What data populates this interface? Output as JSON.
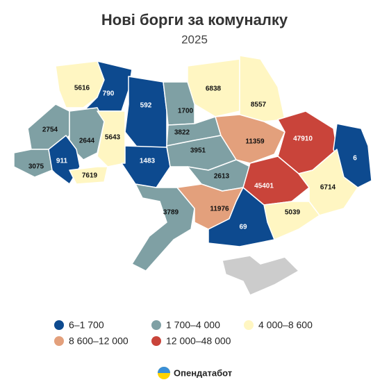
{
  "title": "Нові борги за комуналку",
  "subtitle": "2025",
  "regions": [
    {
      "value": 5616,
      "color": "#fff6c2"
    },
    {
      "value": 790,
      "color": "#0d4a8f"
    },
    {
      "value": 592,
      "color": "#0d4a8f"
    },
    {
      "value": 6838,
      "color": "#fff6c2"
    },
    {
      "value": 8557,
      "color": "#fff6c2"
    },
    {
      "value": 2754,
      "color": "#7fa0a4"
    },
    {
      "value": 2644,
      "color": "#7fa0a4"
    },
    {
      "value": 5643,
      "color": "#fff6c2"
    },
    {
      "value": 1700,
      "color": "#7fa0a4"
    },
    {
      "value": 3822,
      "color": "#7fa0a4"
    },
    {
      "value": 11359,
      "color": "#e3a07c"
    },
    {
      "value": 47910,
      "color": "#c9443a"
    },
    {
      "value": 6,
      "color": "#0d4a8f"
    },
    {
      "value": 3075,
      "color": "#7fa0a4"
    },
    {
      "value": 911,
      "color": "#0d4a8f"
    },
    {
      "value": 7619,
      "color": "#fff6c2"
    },
    {
      "value": 1483,
      "color": "#0d4a8f"
    },
    {
      "value": 3951,
      "color": "#7fa0a4"
    },
    {
      "value": 2613,
      "color": "#7fa0a4"
    },
    {
      "value": 45401,
      "color": "#c9443a"
    },
    {
      "value": 6714,
      "color": "#fff6c2"
    },
    {
      "value": 3789,
      "color": "#7fa0a4"
    },
    {
      "value": 11976,
      "color": "#e3a07c"
    },
    {
      "value": 5039,
      "color": "#fff6c2"
    },
    {
      "value": 69,
      "color": "#0d4a8f"
    }
  ],
  "legend": [
    {
      "label": "6–1 700",
      "color": "#0d4a8f"
    },
    {
      "label": "1 700–4 000",
      "color": "#7fa0a4"
    },
    {
      "label": "4 000–8 600",
      "color": "#fff6c2"
    },
    {
      "label": "8 600–12 000",
      "color": "#e3a07c"
    },
    {
      "label": "12 000–48 000",
      "color": "#c9443a"
    }
  ],
  "brand": "Опендатабот"
}
